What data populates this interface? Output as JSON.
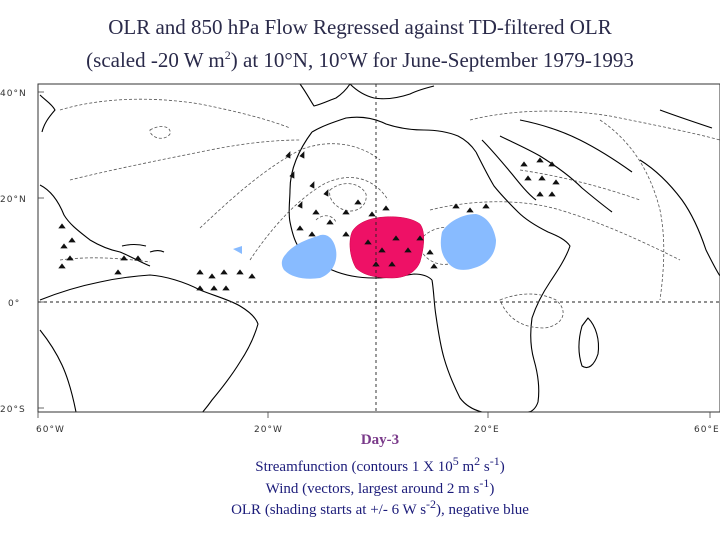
{
  "title": {
    "line1": "OLR and 850 hPa Flow Regressed against TD-filtered OLR",
    "line2_pre": "(scaled -20 W m",
    "line2_sup": "2",
    "line2_post": ") at 10°N, 10°W for June-September 1979-1993"
  },
  "map": {
    "lat_labels": [
      "40°N",
      "20°N",
      "0°",
      "20°S"
    ],
    "lon_labels": [
      "60°W",
      "20°W",
      "20°E",
      "60°E"
    ],
    "equator_line": "dashed",
    "colors": {
      "positive_olr": "#ee1166",
      "negative_olr": "#88bbff",
      "coast": "#000000",
      "contour": "#555555"
    },
    "features": [
      "coastline",
      "streamfunction-contours",
      "wind-vectors",
      "olr-shading-positive",
      "olr-shading-negative"
    ]
  },
  "caption": {
    "day": "Day-3",
    "line1_pre": "Streamfunction (contours 1 X 10",
    "line1_sup1": "5",
    "line1_mid": " m",
    "line1_sup2": "2",
    "line1_mid2": " s",
    "line1_sup3": "-1",
    "line1_post": ")",
    "line2_pre": "Wind (vectors, largest around 2 m s",
    "line2_sup": "-1",
    "line2_post": ")",
    "line3_pre": "OLR (shading starts at +/- 6 W s",
    "line3_sup": "-2",
    "line3_post": "), negative blue"
  }
}
